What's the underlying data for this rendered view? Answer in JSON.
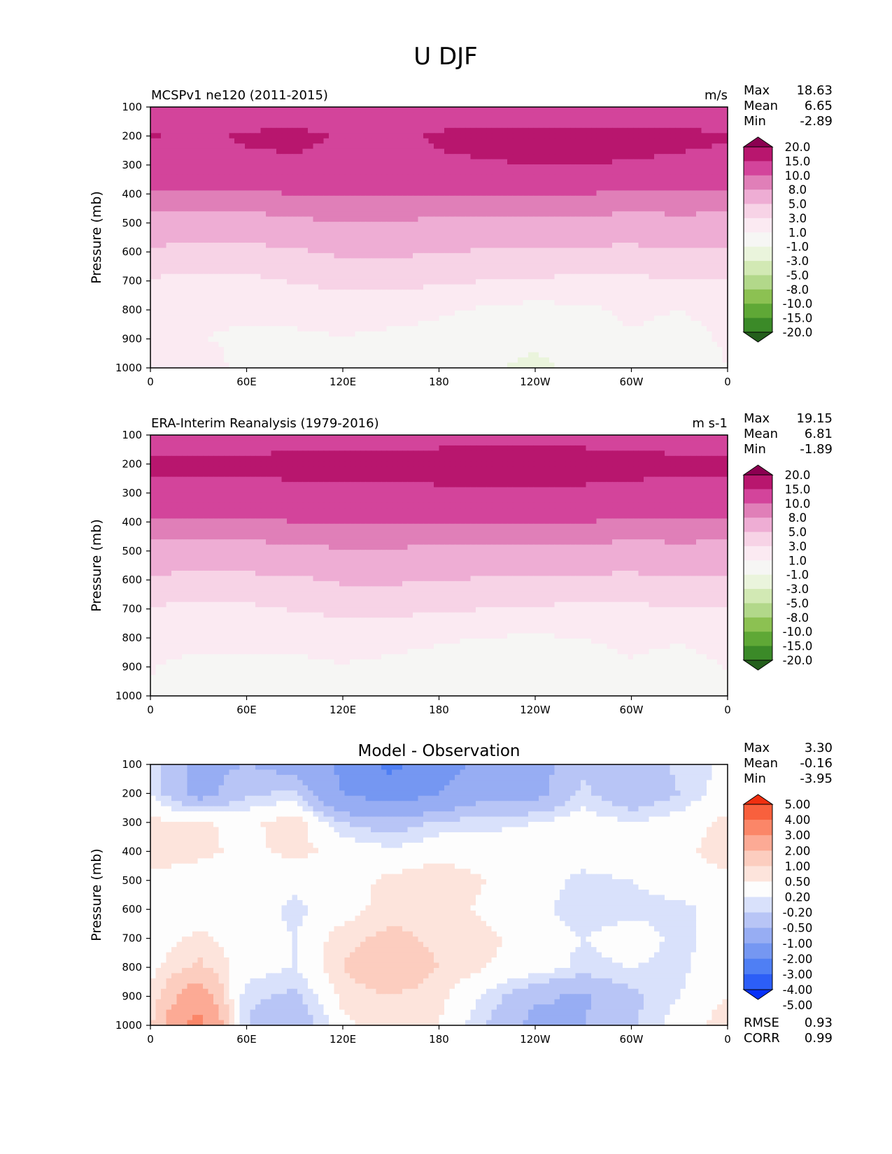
{
  "figure": {
    "title": "U DJF"
  },
  "x_ticks": [
    "0",
    "60E",
    "120E",
    "180",
    "120W",
    "60W",
    "0"
  ],
  "y_ticks": [
    "100",
    "200",
    "300",
    "400",
    "500",
    "600",
    "700",
    "800",
    "900",
    "1000"
  ],
  "ylabel": "Pressure (mb)",
  "palettes": {
    "field": [
      "#245f1c",
      "#3b8a28",
      "#5fa836",
      "#8cc152",
      "#b2d88a",
      "#d2e9b4",
      "#eaf4dc",
      "#f6f6f4",
      "#fbeaf2",
      "#f7d3e6",
      "#eeadd4",
      "#e07fb8",
      "#d3449b",
      "#b8166e",
      "#8c0051"
    ],
    "diff": [
      "#0731f8",
      "#2c5ef7",
      "#4f7ff4",
      "#7597f2",
      "#97adf3",
      "#b8c5f6",
      "#d9e1fb",
      "#fdfdfd",
      "#fde4dc",
      "#fccdbf",
      "#fcaa95",
      "#fb8668",
      "#f8603d",
      "#f03010"
    ]
  },
  "colorbar_labels": {
    "field": [
      "20.0",
      "15.0",
      "10.0",
      "8.0",
      "5.0",
      "3.0",
      "1.0",
      "-1.0",
      "-3.0",
      "-5.0",
      "-8.0",
      "-10.0",
      "-15.0",
      "-20.0"
    ],
    "diff": [
      "5.00",
      "4.00",
      "3.00",
      "2.00",
      "1.00",
      "0.50",
      "0.20",
      "-0.20",
      "-0.50",
      "-1.00",
      "-2.00",
      "-3.00",
      "-4.00",
      "-5.00"
    ]
  },
  "panels": [
    {
      "title_left": "MCSPv1 ne120 (2011-2015)",
      "title_center": "",
      "units": "m/s",
      "stats": [
        {
          "label": "Max",
          "value": "18.63"
        },
        {
          "label": "Mean",
          "value": "6.65"
        },
        {
          "label": "Min",
          "value": "-2.89"
        }
      ],
      "extra_stats": []
    },
    {
      "title_left": "ERA-Interim Reanalysis (1979-2016)",
      "title_center": "",
      "units": "m s-1",
      "stats": [
        {
          "label": "Max",
          "value": "19.15"
        },
        {
          "label": "Mean",
          "value": "6.81"
        },
        {
          "label": "Min",
          "value": "-1.89"
        }
      ],
      "extra_stats": []
    },
    {
      "title_left": "",
      "title_center": "Model - Observation",
      "units": "",
      "stats": [
        {
          "label": "Max",
          "value": "3.30"
        },
        {
          "label": "Mean",
          "value": "-0.16"
        },
        {
          "label": "Min",
          "value": "-3.95"
        }
      ],
      "extra_stats": [
        {
          "label": "RMSE",
          "value": "0.93"
        },
        {
          "label": "CORR",
          "value": "0.99"
        }
      ]
    }
  ],
  "chart_data": [
    {
      "type": "heatmap",
      "title": "MCSPv1 ne120 (2011-2015)",
      "units": "m/s",
      "xlabel": "",
      "ylabel": "Pressure (mb)",
      "x_ticks": [
        "0",
        "60E",
        "120E",
        "180",
        "120W",
        "60W",
        "0"
      ],
      "y_range": [
        100,
        1000
      ],
      "stats": {
        "max": 18.63,
        "mean": 6.65,
        "min": -2.89
      },
      "x_lon": [
        0,
        30,
        60,
        90,
        120,
        150,
        180,
        210,
        240,
        270,
        300,
        330,
        360
      ],
      "y_p": [
        100,
        200,
        300,
        400,
        500,
        600,
        700,
        800,
        900,
        1000
      ],
      "z": [
        [
          10.5,
          10,
          10,
          10.5,
          11,
          11,
          10.5,
          10,
          10,
          10,
          10.5,
          10.5,
          10.5
        ],
        [
          15.5,
          13,
          16,
          16.5,
          14.5,
          13,
          16,
          17,
          17.5,
          17.5,
          17,
          16.5,
          15.5
        ],
        [
          13,
          12,
          13.5,
          14,
          13.5,
          13,
          14,
          14.5,
          15,
          15,
          14.5,
          14,
          13
        ],
        [
          9.5,
          9.5,
          9.5,
          10,
          10,
          10,
          10,
          10,
          10,
          10,
          9.5,
          9.5,
          9.5
        ],
        [
          7,
          7,
          7,
          7.5,
          8,
          8,
          7.5,
          7.5,
          7.5,
          7.5,
          7,
          7.5,
          7
        ],
        [
          4.5,
          4.2,
          4.2,
          4.6,
          5.4,
          5.4,
          5,
          4.8,
          4.6,
          4.4,
          4.3,
          4.7,
          4.5
        ],
        [
          2.8,
          2.5,
          2.6,
          3.1,
          3.6,
          3.6,
          3.3,
          3,
          2.8,
          2.6,
          2.6,
          3,
          2.8
        ],
        [
          1.6,
          1.6,
          1.5,
          1.7,
          1.9,
          1.7,
          1.3,
          0.7,
          0.3,
          0.6,
          1.4,
          1,
          1.6
        ],
        [
          1.3,
          1.1,
          0.5,
          0.6,
          0.9,
          0.6,
          0.3,
          -0.3,
          -0.6,
          0,
          0.8,
          0.3,
          1.3
        ],
        [
          1.2,
          2.5,
          0,
          -0.4,
          0.1,
          0.1,
          0,
          -0.7,
          -1.5,
          -0.5,
          0,
          -0.5,
          1
        ]
      ]
    },
    {
      "type": "heatmap",
      "title": "ERA-Interim Reanalysis (1979-2016)",
      "units": "m s-1",
      "xlabel": "",
      "ylabel": "Pressure (mb)",
      "x_ticks": [
        "0",
        "60E",
        "120E",
        "180",
        "120W",
        "60W",
        "0"
      ],
      "y_range": [
        100,
        1000
      ],
      "stats": {
        "max": 19.15,
        "mean": 6.81,
        "min": -1.89
      },
      "x_lon": [
        0,
        30,
        60,
        90,
        120,
        150,
        180,
        210,
        240,
        270,
        300,
        330,
        360
      ],
      "y_p": [
        100,
        200,
        300,
        400,
        500,
        600,
        700,
        800,
        900,
        1000
      ],
      "z": [
        [
          12,
          12,
          12,
          12,
          12.5,
          12.5,
          13,
          13,
          13,
          13,
          12.5,
          12,
          12
        ],
        [
          16.5,
          16.5,
          16.5,
          17,
          17,
          17,
          17.5,
          17.5,
          18,
          17.5,
          17,
          16.5,
          16.5
        ],
        [
          13,
          13,
          13,
          13.5,
          14,
          14,
          14,
          14.5,
          14.5,
          14,
          13.5,
          13,
          13
        ],
        [
          9.5,
          9.5,
          9.5,
          10,
          10,
          10,
          10,
          10,
          10,
          10,
          9.5,
          9.5,
          9.5
        ],
        [
          7,
          7,
          7,
          7.5,
          7.8,
          7.8,
          7.5,
          7.5,
          7.5,
          7.5,
          7,
          7.5,
          7
        ],
        [
          4.5,
          4.3,
          4.3,
          4.6,
          5.3,
          5.3,
          5,
          4.8,
          4.6,
          4.4,
          4.3,
          4.7,
          4.5
        ],
        [
          2.8,
          2.6,
          2.7,
          3.1,
          3.5,
          3.5,
          3.3,
          3,
          2.8,
          2.6,
          2.6,
          3,
          2.8
        ],
        [
          1.6,
          1.6,
          1.6,
          1.7,
          1.8,
          1.6,
          1.3,
          0.9,
          0.8,
          1,
          1.4,
          1.2,
          1.6
        ],
        [
          1.1,
          0.5,
          0.4,
          0.5,
          0.9,
          0.6,
          0.2,
          0,
          -0.2,
          0.2,
          0.8,
          0.3,
          1.1
        ],
        [
          0.8,
          0.7,
          0,
          0,
          0,
          0,
          -0.2,
          -0.6,
          -0.9,
          0,
          0,
          0,
          0.8
        ]
      ]
    },
    {
      "type": "heatmap",
      "title": "Model - Observation",
      "units": "",
      "xlabel": "",
      "ylabel": "Pressure (mb)",
      "x_ticks": [
        "0",
        "60E",
        "120E",
        "180",
        "120W",
        "60W",
        "0"
      ],
      "y_range": [
        100,
        1000
      ],
      "stats": {
        "max": 3.3,
        "mean": -0.16,
        "min": -3.95,
        "rmse": 0.93,
        "corr": 0.99
      },
      "x_lon": [
        0,
        30,
        60,
        90,
        120,
        150,
        180,
        210,
        240,
        270,
        300,
        330,
        360
      ],
      "y_p": [
        100,
        200,
        300,
        400,
        500,
        600,
        700,
        800,
        900,
        1000
      ],
      "z": [
        [
          -0.3,
          -1.2,
          -1,
          -1.3,
          -2.2,
          -3.2,
          -2.5,
          -1.6,
          -1.3,
          -0.6,
          -0.8,
          -0.4,
          -0.1
        ],
        [
          -0.2,
          -1.3,
          -0.6,
          -0.4,
          -2,
          -2.6,
          -2,
          -1.2,
          -1.2,
          -0.4,
          -0.9,
          -0.5,
          0
        ],
        [
          0.3,
          0.25,
          0.1,
          0.4,
          -0.5,
          -0.8,
          -0.4,
          -0.3,
          -0.2,
          0,
          -0.2,
          0,
          0.3
        ],
        [
          0.4,
          0.3,
          0.1,
          0.3,
          0.1,
          -0.1,
          0.1,
          0,
          0,
          0,
          0.1,
          0.1,
          0.4
        ],
        [
          0.1,
          0,
          0,
          -0.1,
          0,
          0.3,
          0.4,
          0.2,
          0,
          -0.3,
          -0.2,
          0,
          0.1
        ],
        [
          0,
          -0.1,
          0,
          -0.3,
          0,
          0.4,
          0.4,
          0.1,
          -0.1,
          -0.4,
          -0.3,
          -0.3,
          0
        ],
        [
          0,
          0.3,
          0,
          -0.2,
          0.4,
          0.6,
          0.4,
          0.3,
          0,
          -0.2,
          0,
          -0.3,
          0
        ],
        [
          0.1,
          0.6,
          0,
          -0.2,
          0.5,
          0.9,
          0.5,
          0.2,
          0,
          -0.3,
          -0.2,
          -0.3,
          0.1
        ],
        [
          0.3,
          1.5,
          -0.4,
          -0.6,
          0.3,
          0.5,
          0.3,
          -0.3,
          -0.9,
          -1.1,
          -0.6,
          -0.2,
          0.2
        ],
        [
          0.4,
          2.5,
          -0.5,
          -1,
          0.1,
          0.4,
          0.2,
          -0.5,
          -1.2,
          -1,
          -0.6,
          0,
          0.4
        ]
      ]
    }
  ],
  "field_levels": [
    -20,
    -15,
    -10,
    -8,
    -5,
    -3,
    -1,
    1,
    3,
    5,
    8,
    10,
    15,
    20
  ],
  "diff_levels": [
    -5,
    -4,
    -3,
    -2,
    -1,
    -0.5,
    -0.2,
    0.2,
    0.5,
    1,
    2,
    3,
    4,
    5
  ]
}
